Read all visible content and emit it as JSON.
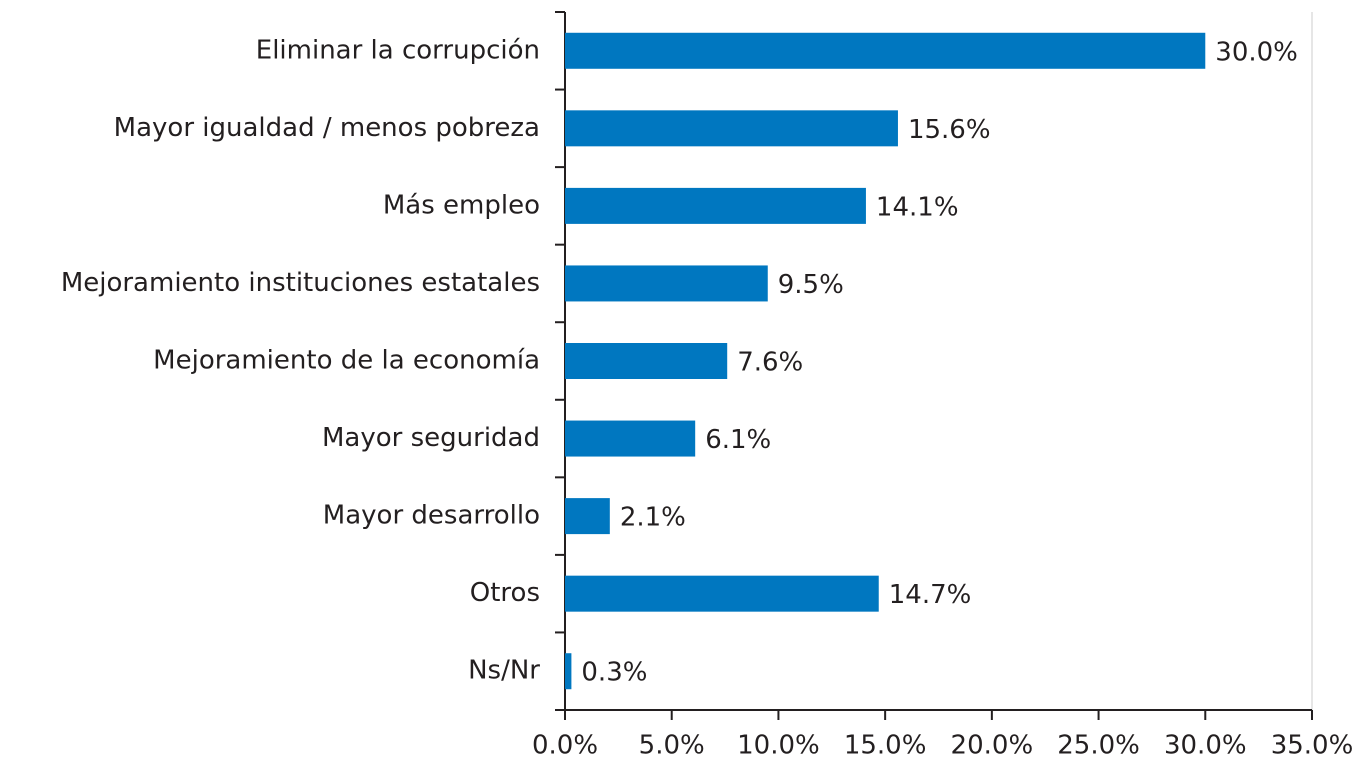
{
  "chart_data": {
    "type": "bar",
    "orientation": "horizontal",
    "categories": [
      "Eliminar la corrupción",
      "Mayor igualdad / menos pobreza",
      "Más empleo",
      "Mejoramiento instituciones estatales",
      "Mejoramiento de la economía",
      "Mayor seguridad",
      "Mayor desarrollo",
      "Otros",
      "Ns/Nr"
    ],
    "values": [
      30.0,
      15.6,
      14.1,
      9.5,
      7.6,
      6.1,
      2.1,
      14.7,
      0.3
    ],
    "value_labels": [
      "30.0%",
      "15.6%",
      "14.1%",
      "9.5%",
      "7.6%",
      "6.1%",
      "2.1%",
      "14.7%",
      "0.3%"
    ],
    "color": "#0077c0",
    "xlim": [
      0,
      35
    ],
    "xticks": [
      {
        "value": 0,
        "label": "0.0%"
      },
      {
        "value": 5,
        "label": "5.0%"
      },
      {
        "value": 10,
        "label": "10.0%"
      },
      {
        "value": 15,
        "label": "15.0%"
      },
      {
        "value": 20,
        "label": "20.0%"
      },
      {
        "value": 25,
        "label": "25.0%"
      },
      {
        "value": 30,
        "label": "30.0%"
      },
      {
        "value": 35,
        "label": "35.0%"
      }
    ]
  }
}
